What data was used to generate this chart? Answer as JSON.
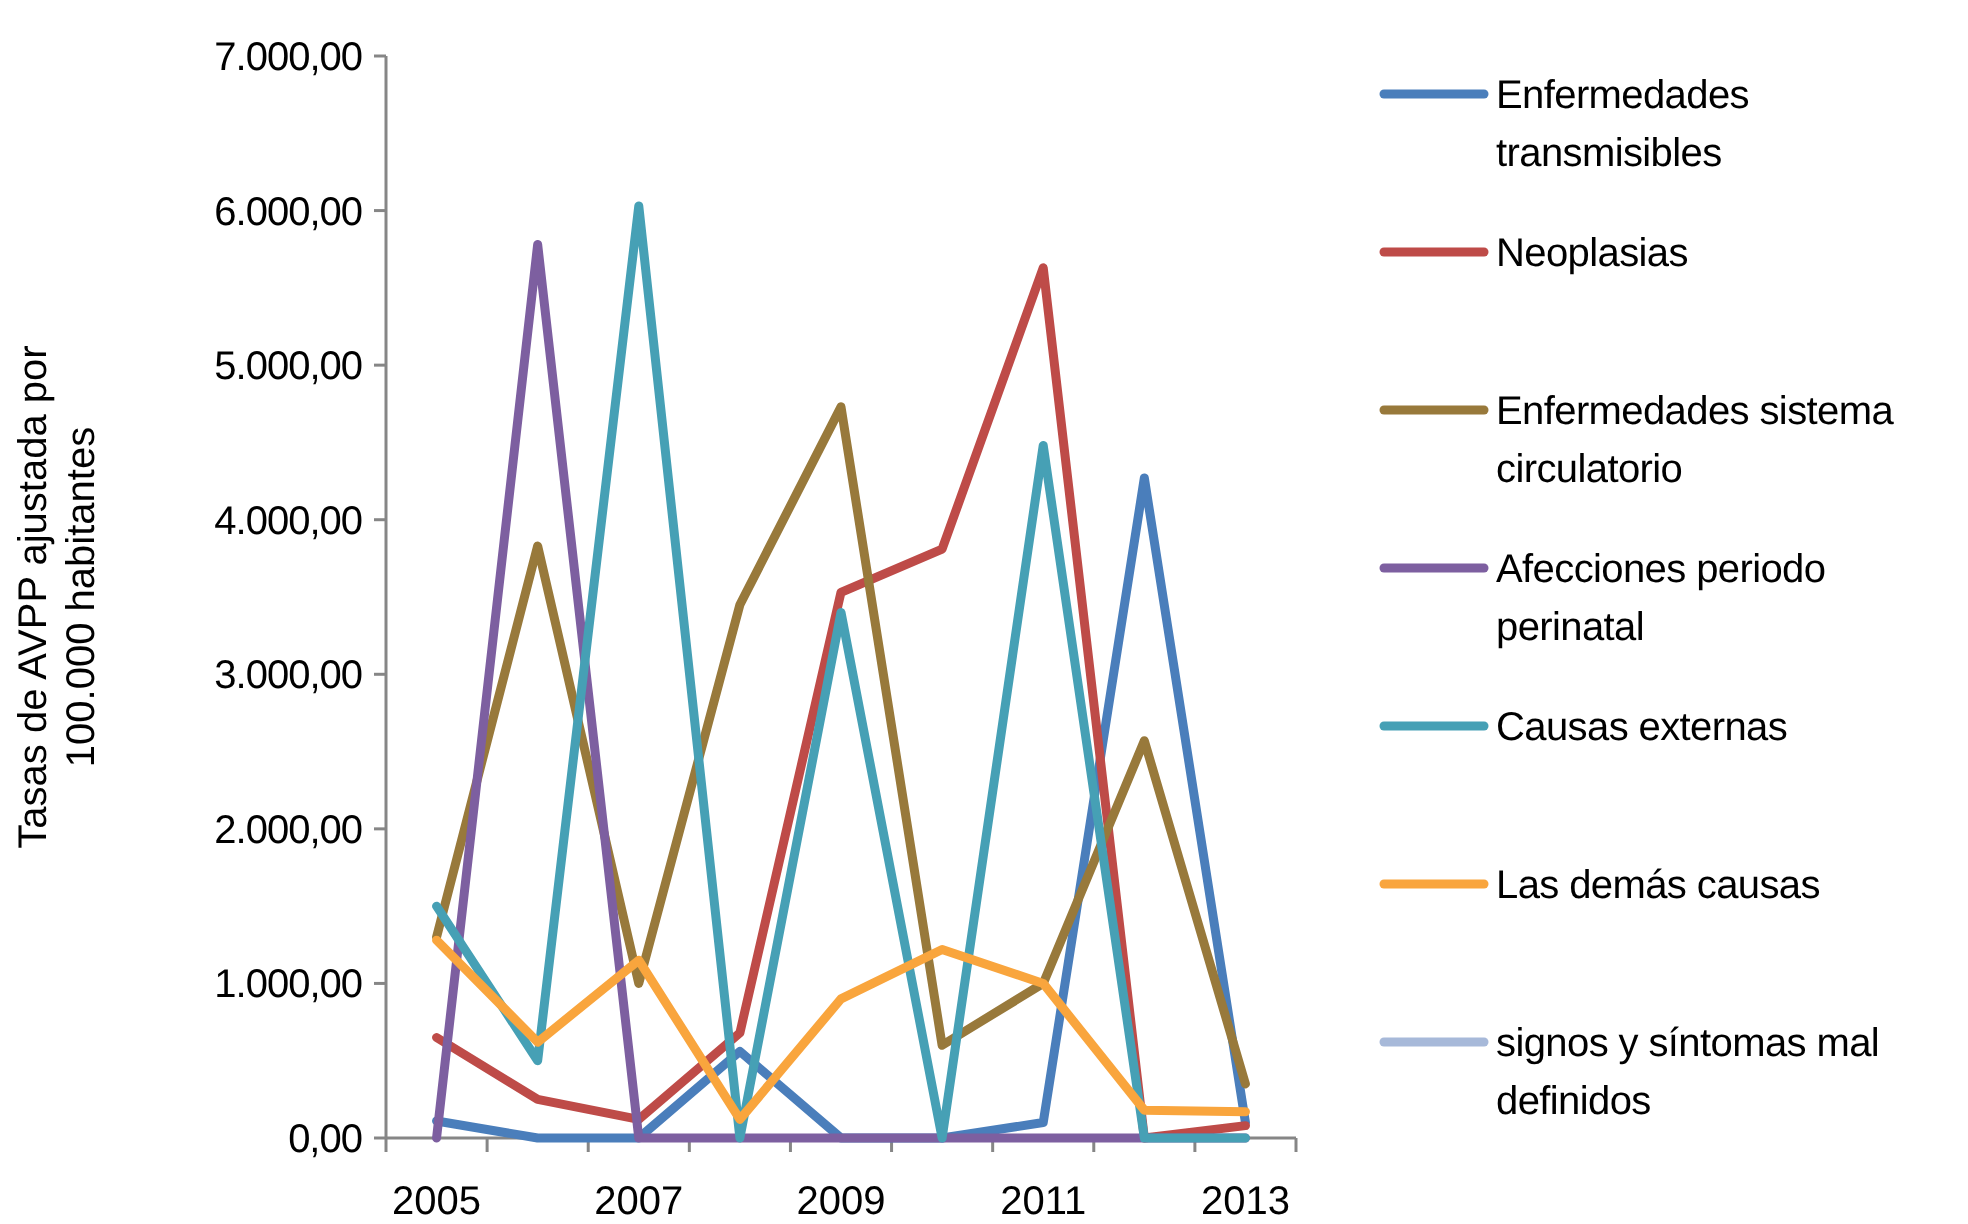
{
  "chart_data": {
    "type": "line",
    "ylabel": "Tasas de AVPP ajustada por 100.000 habitantes",
    "categories": [
      "2005",
      null,
      "2007",
      null,
      "2009",
      null,
      "2011",
      null,
      "2013"
    ],
    "ylim": [
      0,
      7000
    ],
    "yticks": [
      {
        "value": 0,
        "label": "0,00"
      },
      {
        "value": 1000,
        "label": "1.000,00"
      },
      {
        "value": 2000,
        "label": "2.000,00"
      },
      {
        "value": 3000,
        "label": "3.000,00"
      },
      {
        "value": 4000,
        "label": "4.000,00"
      },
      {
        "value": 5000,
        "label": "5.000,00"
      },
      {
        "value": 6000,
        "label": "6.000,00"
      },
      {
        "value": 7000,
        "label": "7.000,00"
      }
    ],
    "grid": false,
    "legend": "right",
    "marker": "none",
    "line_style": "solid",
    "series": [
      {
        "name": "Enfermedades transmisibles",
        "color": "#4a7ebb",
        "values": [
          110,
          0,
          0,
          560,
          0,
          0,
          100,
          4270,
          100
        ]
      },
      {
        "name": "Neoplasias",
        "color": "#be4b48",
        "values": [
          650,
          250,
          120,
          680,
          3530,
          3810,
          5630,
          0,
          80
        ]
      },
      {
        "name": "Enfermedades sistema circulatorio",
        "color": "#98793b",
        "values": [
          1300,
          3830,
          1000,
          3450,
          4730,
          600,
          1000,
          2570,
          350
        ]
      },
      {
        "name": "Afecciones periodo perinatal",
        "color": "#7d5fa0",
        "values": [
          0,
          5780,
          0,
          0,
          0,
          0,
          0,
          0,
          0
        ]
      },
      {
        "name": "Causas externas",
        "color": "#46a0b5",
        "values": [
          1500,
          500,
          6030,
          0,
          3400,
          0,
          4480,
          0,
          0
        ]
      },
      {
        "name": "Las demás causas",
        "color": "#f9a53d",
        "values": [
          1280,
          620,
          1150,
          120,
          900,
          1220,
          1000,
          180,
          170
        ]
      },
      {
        "name": "signos y síntomas mal definidos",
        "color": "#a7b9d9",
        "values": [
          null,
          null,
          null,
          null,
          null,
          null,
          null,
          null,
          null
        ]
      }
    ]
  }
}
